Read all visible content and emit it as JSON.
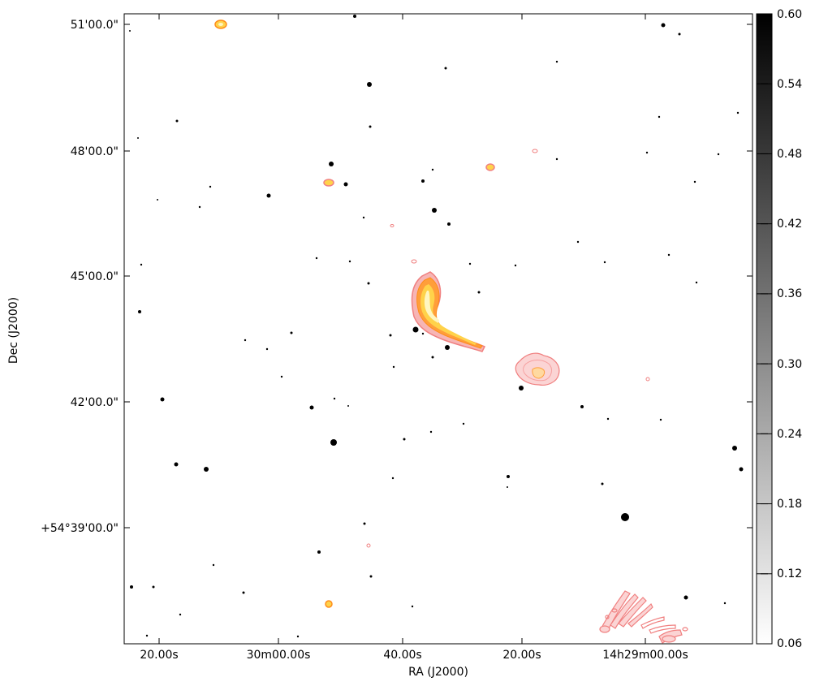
{
  "image": {
    "x_axis_label": "RA (J2000)",
    "y_axis_label": "Dec (J2000)",
    "ra_ticks": [
      "20.00s",
      "30m00.00s",
      "40.00s",
      "20.00s",
      "14h29m00.00s"
    ],
    "dec_ticks": [
      "51'00.0\"",
      "48'00.0\"",
      "45'00.0\"",
      "42'00.0\"",
      "+54°39'00.0\""
    ],
    "colorbar": {
      "min": 0.06,
      "max": 0.6,
      "tick_labels": [
        "0.60",
        "0.54",
        "0.48",
        "0.42",
        "0.36",
        "0.30",
        "0.24",
        "0.18",
        "0.12",
        "0.06"
      ]
    },
    "colors": {
      "contour_outer": "#f08080",
      "contour_mid": "#ff8c1a",
      "contour_inner": "#ffd24a",
      "contour_core": "#fff6c0",
      "star": "#000000"
    }
  }
}
